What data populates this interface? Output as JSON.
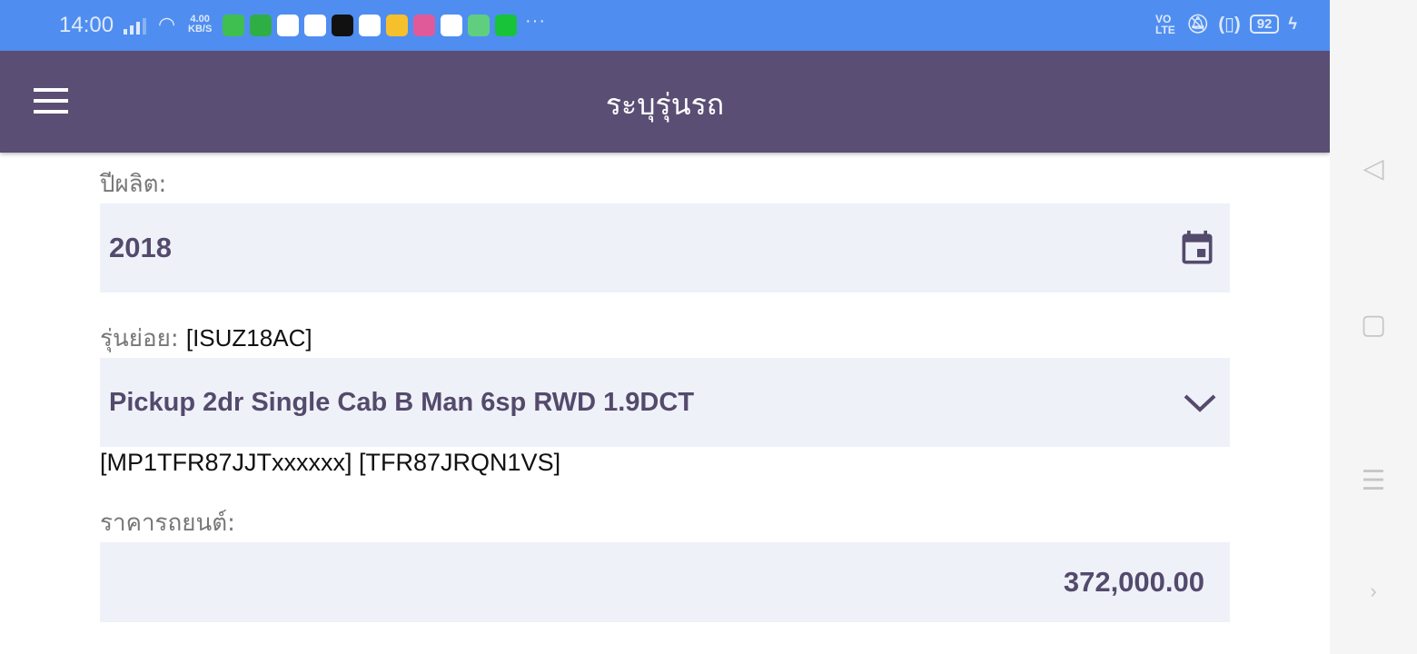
{
  "status_bar": {
    "time": "14:00",
    "speed_value": "4.00",
    "speed_unit": "KB/S",
    "volte": "VO LTE",
    "battery": "92",
    "app_icon_colors": [
      "#3fbf4f",
      "#2fae45",
      "#ffffff",
      "#ffffff",
      "#111111",
      "#ffffff",
      "#f6c02c",
      "#e05a9a",
      "#ffffff",
      "#5fcf7f",
      "#18c33a"
    ]
  },
  "app_bar": {
    "title": "ระบุรุ่นรถ",
    "menu_icon": "hamburger-icon"
  },
  "form": {
    "year": {
      "label": "ปีผลิต:",
      "value": "2018",
      "icon": "calendar-icon"
    },
    "submodel": {
      "label": "รุ่นย่อย:",
      "code": "[ISUZ18AC]",
      "value": "Pickup 2dr Single Cab B Man 6sp RWD 1.9DCT",
      "icon": "chevron-down-icon",
      "extra": "[MP1TFR87JJTxxxxxx] [TFR87JRQN1VS]"
    },
    "price": {
      "label": "ราคารถยนต์:",
      "value": "372,000.00"
    }
  }
}
